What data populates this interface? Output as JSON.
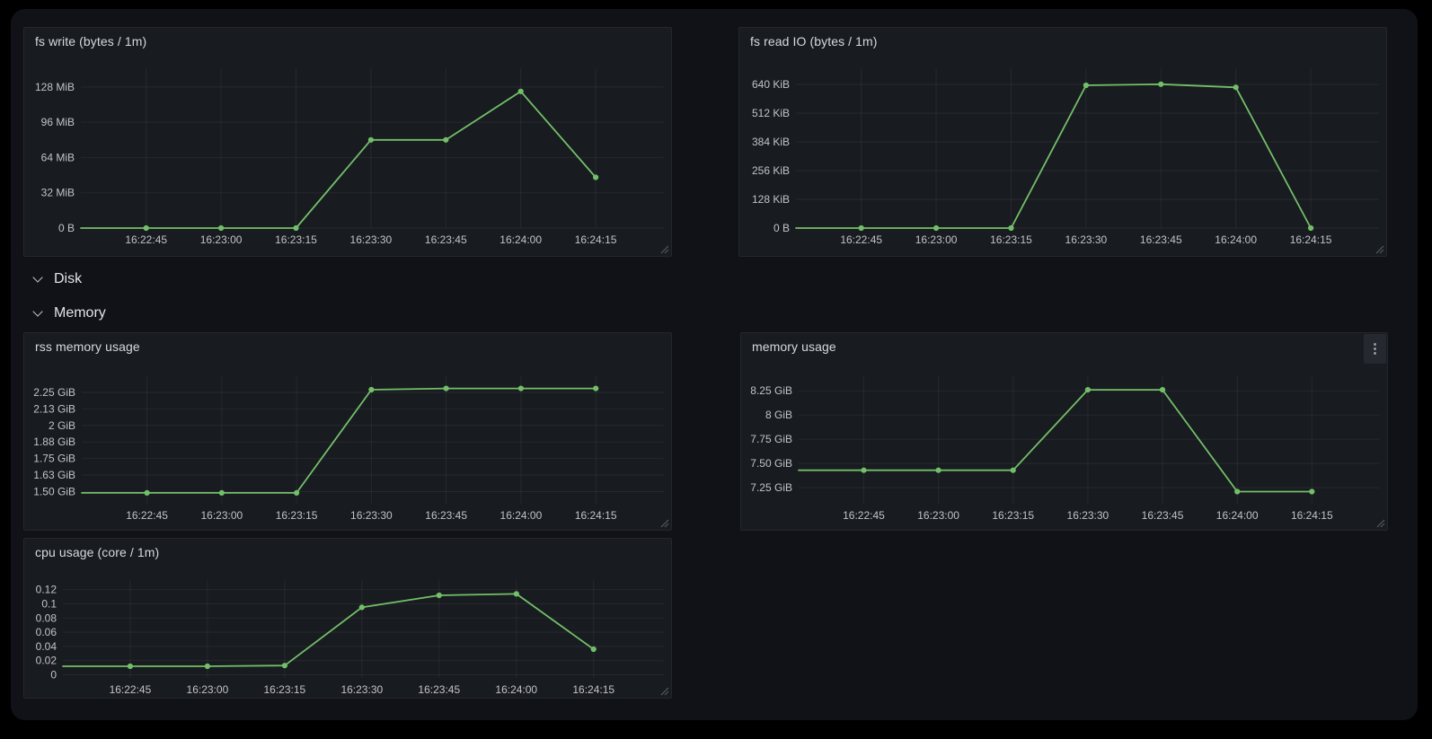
{
  "dashboard": {
    "rows": [
      {
        "label": "Disk",
        "icon": "chevron-down-icon"
      },
      {
        "label": "Memory",
        "icon": "chevron-down-icon"
      }
    ],
    "panels": [
      {
        "title": "fs write (bytes / 1m)",
        "chart_data": {
          "type": "line",
          "x": [
            "16:22:45",
            "16:23:00",
            "16:23:15",
            "16:23:30",
            "16:23:45",
            "16:24:00",
            "16:24:15"
          ],
          "unit": "MiB",
          "values": [
            0,
            0,
            0,
            80,
            80,
            124,
            46
          ],
          "edge_value": 0,
          "y_ticks": [
            {
              "label": "0 B",
              "value": 0
            },
            {
              "label": "32 MiB",
              "value": 32
            },
            {
              "label": "64 MiB",
              "value": 64
            },
            {
              "label": "96 MiB",
              "value": 96
            },
            {
              "label": "128 MiB",
              "value": 128
            }
          ],
          "ylim": [
            0,
            145
          ],
          "grid": true,
          "legend": "none"
        }
      },
      {
        "title": "fs read IO (bytes / 1m)",
        "chart_data": {
          "type": "line",
          "x": [
            "16:22:45",
            "16:23:00",
            "16:23:15",
            "16:23:30",
            "16:23:45",
            "16:24:00",
            "16:24:15"
          ],
          "unit": "KiB",
          "values": [
            0,
            0,
            0,
            636,
            641,
            627,
            0
          ],
          "edge_value": 0,
          "y_ticks": [
            {
              "label": "0 B",
              "value": 0
            },
            {
              "label": "128 KiB",
              "value": 128
            },
            {
              "label": "256 KiB",
              "value": 256
            },
            {
              "label": "384 KiB",
              "value": 384
            },
            {
              "label": "512 KiB",
              "value": 512
            },
            {
              "label": "640 KiB",
              "value": 640
            }
          ],
          "ylim": [
            0,
            712
          ],
          "grid": true,
          "legend": "none"
        }
      },
      {
        "title": "rss memory usage",
        "chart_data": {
          "type": "line",
          "x": [
            "16:22:45",
            "16:23:00",
            "16:23:15",
            "16:23:30",
            "16:23:45",
            "16:24:00",
            "16:24:15"
          ],
          "unit": "GiB",
          "values": [
            1.49,
            1.49,
            1.49,
            2.27,
            2.28,
            2.28,
            2.28
          ],
          "edge_value": 1.49,
          "y_ticks": [
            {
              "label": "1.50 GiB",
              "value": 1.5
            },
            {
              "label": "1.63 GiB",
              "value": 1.625
            },
            {
              "label": "1.75 GiB",
              "value": 1.75
            },
            {
              "label": "1.88 GiB",
              "value": 1.875
            },
            {
              "label": "2 GiB",
              "value": 2
            },
            {
              "label": "2.13 GiB",
              "value": 2.125
            },
            {
              "label": "2.25 GiB",
              "value": 2.25
            }
          ],
          "ylim": [
            1.408,
            2.372
          ],
          "grid": true,
          "legend": "none"
        }
      },
      {
        "title": "memory usage",
        "menu_icon": "kebab-menu-icon",
        "chart_data": {
          "type": "line",
          "x": [
            "16:22:45",
            "16:23:00",
            "16:23:15",
            "16:23:30",
            "16:23:45",
            "16:24:00",
            "16:24:15"
          ],
          "unit": "GiB",
          "values": [
            7.43,
            7.43,
            7.43,
            8.26,
            8.26,
            7.21,
            7.21
          ],
          "edge_value": 7.43,
          "y_ticks": [
            {
              "label": "7.25 GiB",
              "value": 7.25
            },
            {
              "label": "7.50 GiB",
              "value": 7.5
            },
            {
              "label": "7.75 GiB",
              "value": 7.75
            },
            {
              "label": "8 GiB",
              "value": 8
            },
            {
              "label": "8.25 GiB",
              "value": 8.25
            }
          ],
          "ylim": [
            7.085,
            8.4
          ],
          "grid": true,
          "legend": "none"
        }
      },
      {
        "title": "cpu usage (core / 1m)",
        "chart_data": {
          "type": "line",
          "x": [
            "16:22:45",
            "16:23:00",
            "16:23:15",
            "16:23:30",
            "16:23:45",
            "16:24:00",
            "16:24:15"
          ],
          "unit": "cores",
          "values": [
            0.012,
            0.012,
            0.013,
            0.095,
            0.112,
            0.114,
            0.036
          ],
          "edge_value": 0.012,
          "y_ticks": [
            {
              "label": "0",
              "value": 0
            },
            {
              "label": "0.02",
              "value": 0.02
            },
            {
              "label": "0.04",
              "value": 0.04
            },
            {
              "label": "0.06",
              "value": 0.06
            },
            {
              "label": "0.08",
              "value": 0.08
            },
            {
              "label": "0.1",
              "value": 0.1
            },
            {
              "label": "0.12",
              "value": 0.12
            }
          ],
          "ylim": [
            -0.0045,
            0.1335
          ],
          "grid": true,
          "legend": "none"
        }
      }
    ]
  },
  "icons": {
    "kebab_menu": "⋮"
  },
  "colors": {
    "series_green": "#73bf69",
    "canvas_bg": "#111217",
    "panel_bg": "#181b1f",
    "panel_border": "#24262c",
    "grid_line": "rgba(204,204,220,0.08)",
    "tick_text": "#c2c3c9",
    "title_text": "#d8d9dd"
  }
}
